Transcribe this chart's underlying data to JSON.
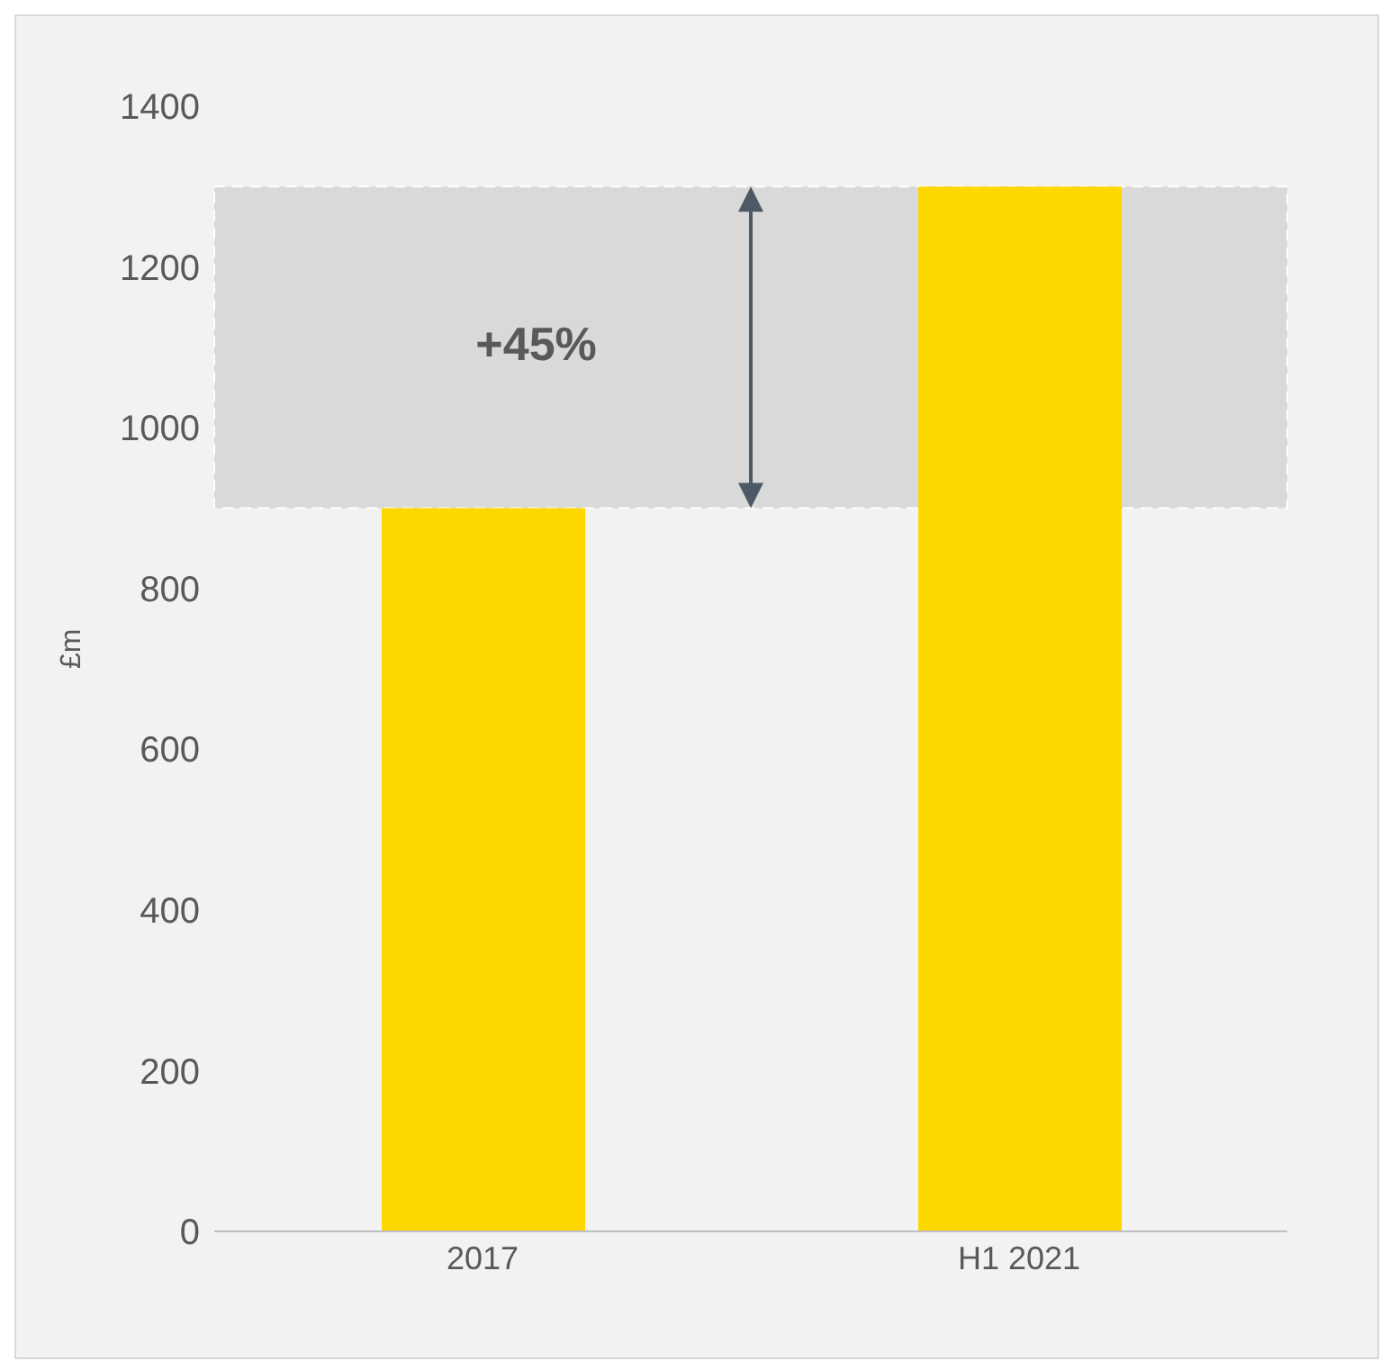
{
  "chart_data": {
    "type": "bar",
    "ylabel": "£m",
    "categories": [
      "2017",
      "H1 2021"
    ],
    "values": [
      900,
      1300
    ],
    "color": "#ffd700",
    "ylim": [
      0,
      1400
    ],
    "yticks": [
      0,
      200,
      400,
      600,
      800,
      1000,
      1200,
      1400
    ],
    "grid": false,
    "legend": false,
    "bands": [
      {
        "axis": "y",
        "from": 900,
        "to": 1300,
        "label": "+45%",
        "color": "#d9d9d9"
      }
    ]
  }
}
